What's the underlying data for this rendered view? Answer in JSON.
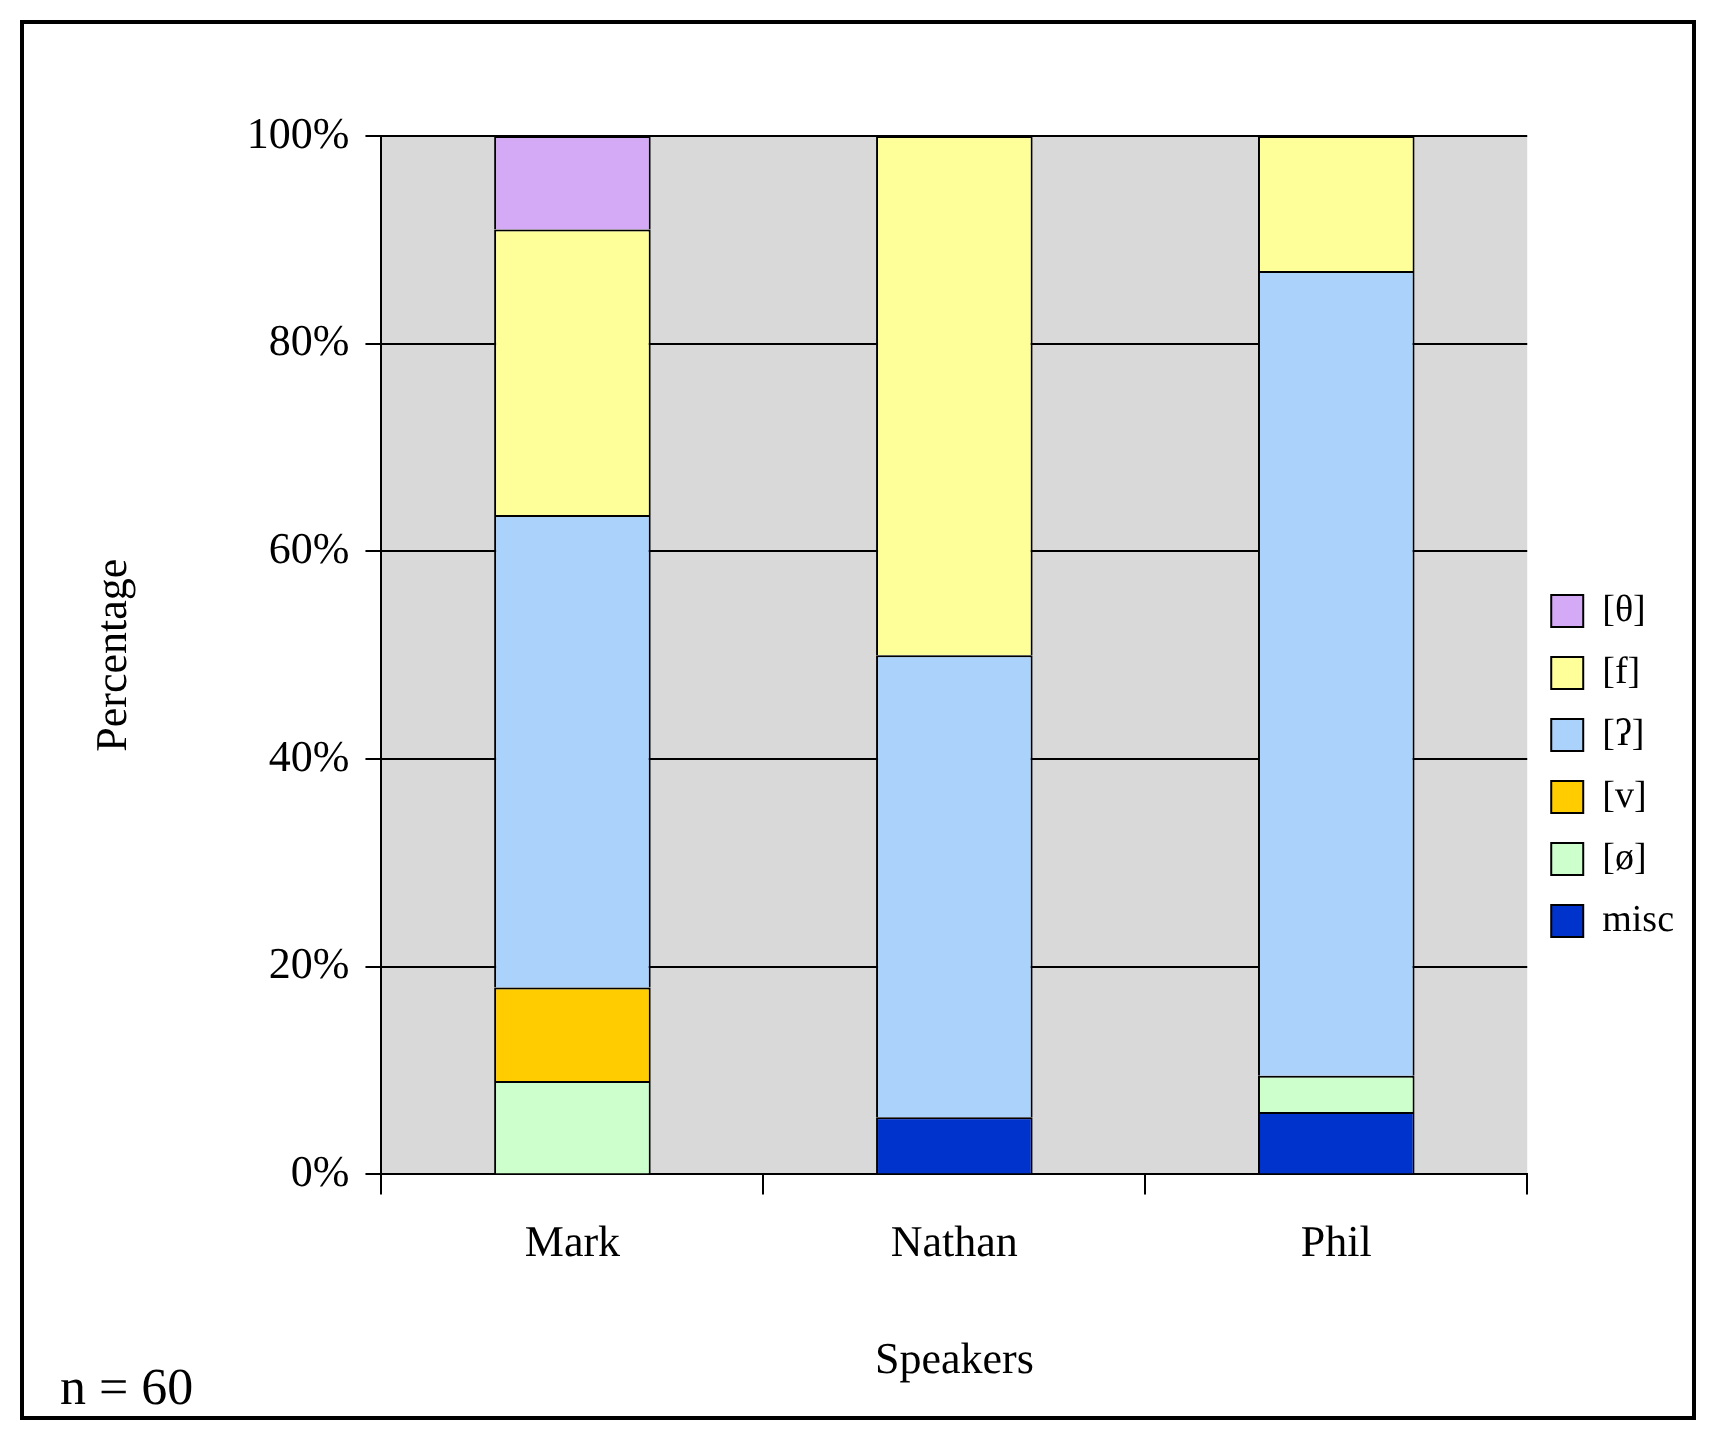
{
  "chart_data": {
    "type": "bar",
    "stacked": true,
    "xlabel": "Speakers",
    "ylabel": "Percentage",
    "categories": [
      "Mark",
      "Nathan",
      "Phil"
    ],
    "series": [
      {
        "name": "misc",
        "color": "#0033cc",
        "values": [
          0,
          5.5,
          6
        ]
      },
      {
        "name": "[ø]",
        "color": "#ccffcc",
        "values": [
          9,
          0,
          3.5
        ]
      },
      {
        "name": "[v]",
        "color": "#ffcc00",
        "values": [
          9,
          0,
          0
        ]
      },
      {
        "name": "[ʔ]",
        "color": "#aad2fb",
        "values": [
          45.5,
          44.5,
          77.5
        ]
      },
      {
        "name": "[f]",
        "color": "#ffff99",
        "values": [
          27.5,
          50,
          13
        ]
      },
      {
        "name": "[θ]",
        "color": "#d4a9f5",
        "values": [
          9,
          0,
          0
        ]
      }
    ],
    "ylim": [
      0,
      100
    ],
    "yticks": [
      {
        "value": 0,
        "label": "0%"
      },
      {
        "value": 20,
        "label": "20%"
      },
      {
        "value": 40,
        "label": "40%"
      },
      {
        "value": 60,
        "label": "60%"
      },
      {
        "value": 80,
        "label": "80%"
      },
      {
        "value": 100,
        "label": "100%"
      }
    ],
    "grid": "y",
    "legend": "right",
    "annotations": [
      "n = 60"
    ]
  }
}
